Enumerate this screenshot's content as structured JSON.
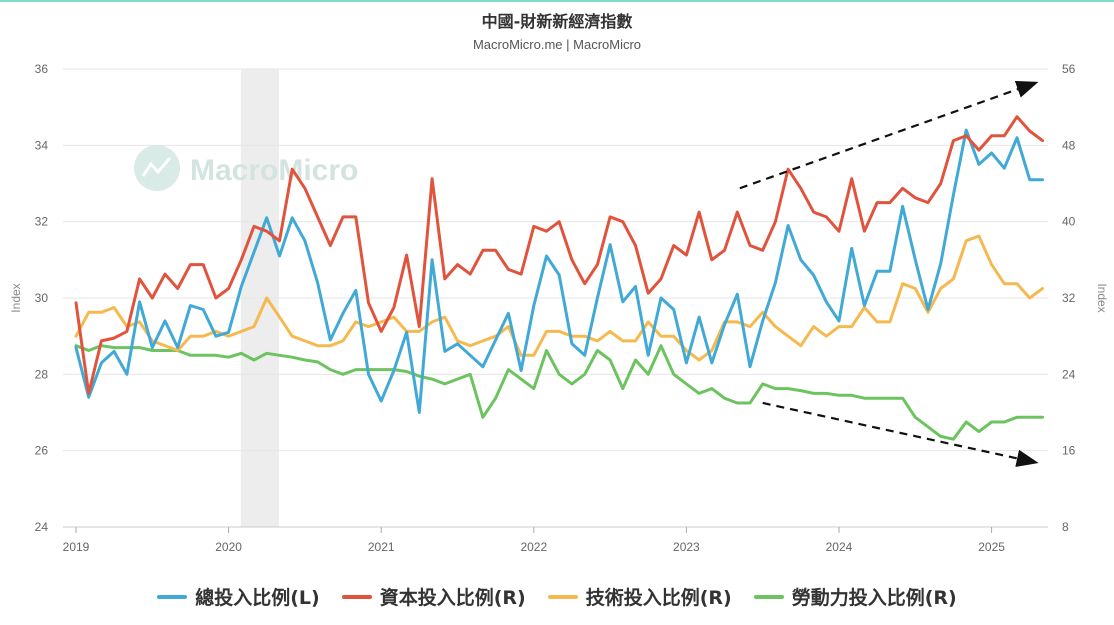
{
  "header": {
    "title": "中國-財新新經濟指數",
    "subtitle": "MacroMicro.me | MacroMicro"
  },
  "watermark": "MacroMicro",
  "colors": {
    "total": "#41a9d6",
    "capital": "#e0533d",
    "tech": "#f5b94f",
    "labor": "#6cc35f",
    "recession": "#ededed",
    "grid": "#e6e6e6",
    "arrow": "#111111"
  },
  "chart_data": {
    "type": "line",
    "xlabels": [
      "2019",
      "2020",
      "2021",
      "2022",
      "2023",
      "2024",
      "2025"
    ],
    "xlim": [
      2019.0,
      2025.35
    ],
    "y_left": {
      "label": "Index",
      "ylim": [
        24,
        36
      ],
      "ticks": [
        "24",
        "26",
        "28",
        "30",
        "32",
        "34",
        "36"
      ]
    },
    "y_right": {
      "label": "Index",
      "ylim": [
        8,
        56
      ],
      "ticks": [
        "8",
        "16",
        "24",
        "32",
        "40",
        "48",
        "56"
      ]
    },
    "shaded_region": [
      2020.08,
      2020.33
    ],
    "legend_position": "bottom",
    "grid": true,
    "series": [
      {
        "key": "total",
        "name": "總投入比例(L)",
        "axis": "left",
        "x_start": 2019.0,
        "step_months": 1,
        "values": [
          28.7,
          27.4,
          28.3,
          28.6,
          28.0,
          29.9,
          28.7,
          29.4,
          28.7,
          29.8,
          29.7,
          29.0,
          29.1,
          30.3,
          31.2,
          32.1,
          31.1,
          32.1,
          31.5,
          30.4,
          28.9,
          29.6,
          30.2,
          28.0,
          27.3,
          28.1,
          29.1,
          27.0,
          31.0,
          28.6,
          28.8,
          28.5,
          28.2,
          28.9,
          29.6,
          28.1,
          29.8,
          31.1,
          30.6,
          28.8,
          28.5,
          30.0,
          31.4,
          29.9,
          30.3,
          28.5,
          30.0,
          29.7,
          28.3,
          29.5,
          28.3,
          29.3,
          30.1,
          28.2,
          29.4,
          30.4,
          31.9,
          31.0,
          30.6,
          29.9,
          29.4,
          31.3,
          29.8,
          30.7,
          30.7,
          32.4,
          31.0,
          29.7,
          30.9,
          32.7,
          34.4,
          33.5,
          33.8,
          33.4,
          34.2,
          33.1,
          33.1
        ]
      },
      {
        "key": "capital",
        "name": "資本投入比例(R)",
        "axis": "right",
        "x_start": 2019.0,
        "step_months": 1,
        "values": [
          31.5,
          22.0,
          27.5,
          27.8,
          28.5,
          34.0,
          32.0,
          34.5,
          33.0,
          35.5,
          35.5,
          32.0,
          33.0,
          36.0,
          39.5,
          39.0,
          38.0,
          45.5,
          43.5,
          40.5,
          37.5,
          40.5,
          40.5,
          31.5,
          28.5,
          31.0,
          36.5,
          29.0,
          44.5,
          34.0,
          35.5,
          34.5,
          37.0,
          37.0,
          35.0,
          34.5,
          39.5,
          39.0,
          40.0,
          36.0,
          33.5,
          35.5,
          40.5,
          40.0,
          37.5,
          32.5,
          34.0,
          37.5,
          36.5,
          41.0,
          36.0,
          37.0,
          41.0,
          37.5,
          37.0,
          40.0,
          45.5,
          43.5,
          41.0,
          40.5,
          39.0,
          44.5,
          39.0,
          42.0,
          42.0,
          43.5,
          42.5,
          42.0,
          44.0,
          48.5,
          49.0,
          47.5,
          49.0,
          49.0,
          51.0,
          49.5,
          48.5
        ]
      },
      {
        "key": "tech",
        "name": "技術投入比例(R)",
        "axis": "right",
        "x_start": 2019.0,
        "step_months": 1,
        "values": [
          28.0,
          30.5,
          30.5,
          31.0,
          29.0,
          29.5,
          27.5,
          27.0,
          26.5,
          28.0,
          28.0,
          28.5,
          28.0,
          28.5,
          29.0,
          32.0,
          30.0,
          28.0,
          27.5,
          27.0,
          27.0,
          27.5,
          29.5,
          29.0,
          29.5,
          30.0,
          28.5,
          28.5,
          29.5,
          30.0,
          27.5,
          27.0,
          27.5,
          28.0,
          29.0,
          26.0,
          26.0,
          28.5,
          28.5,
          28.0,
          28.0,
          27.5,
          28.5,
          27.5,
          27.5,
          29.5,
          28.0,
          28.0,
          26.5,
          25.5,
          26.5,
          29.5,
          29.5,
          29.0,
          30.5,
          29.0,
          28.0,
          27.0,
          29.0,
          28.0,
          29.0,
          29.0,
          31.0,
          29.5,
          29.5,
          33.5,
          33.0,
          30.5,
          33.0,
          34.0,
          38.0,
          38.5,
          35.5,
          33.5,
          33.5,
          32.0,
          33.0
        ]
      },
      {
        "key": "labor",
        "name": "勞動力投入比例(R)",
        "axis": "right",
        "x_start": 2019.0,
        "step_months": 1,
        "values": [
          27.0,
          26.5,
          27.0,
          26.8,
          26.8,
          26.8,
          26.5,
          26.5,
          26.5,
          26.0,
          26.0,
          26.0,
          25.8,
          26.2,
          25.5,
          26.2,
          26.0,
          25.8,
          25.5,
          25.3,
          24.5,
          24.0,
          24.5,
          24.5,
          24.5,
          24.5,
          24.3,
          23.8,
          23.5,
          23.0,
          23.5,
          24.0,
          19.5,
          21.5,
          24.5,
          23.5,
          22.5,
          26.5,
          24.0,
          23.0,
          24.0,
          26.5,
          25.5,
          22.5,
          25.5,
          24.0,
          27.0,
          24.0,
          23.0,
          22.0,
          22.5,
          21.5,
          21.0,
          21.0,
          23.0,
          22.5,
          22.5,
          22.3,
          22.0,
          22.0,
          21.8,
          21.8,
          21.5,
          21.5,
          21.5,
          21.5,
          19.5,
          18.5,
          17.5,
          17.2,
          19.0,
          18.0,
          19.0,
          19.0,
          19.5,
          19.5,
          19.5
        ]
      }
    ],
    "annotations": [
      {
        "type": "dashed-arrow",
        "axis": "right",
        "from": [
          2023.35,
          43.5
        ],
        "to": [
          2025.28,
          54.5
        ]
      },
      {
        "type": "dashed-arrow",
        "axis": "right",
        "from": [
          2023.5,
          21.0
        ],
        "to": [
          2025.28,
          14.8
        ]
      }
    ]
  },
  "legend": [
    {
      "key": "total",
      "label": "總投入比例(L)"
    },
    {
      "key": "capital",
      "label": "資本投入比例(R)"
    },
    {
      "key": "tech",
      "label": "技術投入比例(R)"
    },
    {
      "key": "labor",
      "label": "勞動力投入比例(R)"
    }
  ]
}
